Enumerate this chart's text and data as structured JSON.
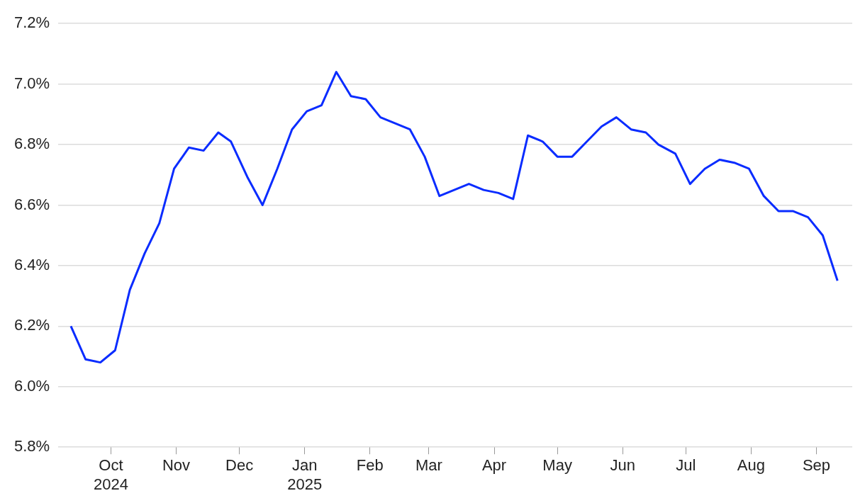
{
  "chart_data": {
    "type": "line",
    "color": "#0a2cff",
    "grid": "y",
    "legend": false,
    "marker": "none",
    "line_style": "solid",
    "x": [
      "2024-09-12",
      "2024-09-19",
      "2024-09-26",
      "2024-10-03",
      "2024-10-10",
      "2024-10-17",
      "2024-10-24",
      "2024-10-31",
      "2024-11-07",
      "2024-11-14",
      "2024-11-21",
      "2024-11-27",
      "2024-12-05",
      "2024-12-12",
      "2024-12-19",
      "2024-12-26",
      "2025-01-02",
      "2025-01-09",
      "2025-01-16",
      "2025-01-23",
      "2025-01-30",
      "2025-02-06",
      "2025-02-13",
      "2025-02-20",
      "2025-02-27",
      "2025-03-06",
      "2025-03-13",
      "2025-03-20",
      "2025-03-27",
      "2025-04-03",
      "2025-04-10",
      "2025-04-17",
      "2025-04-24",
      "2025-05-01",
      "2025-05-08",
      "2025-05-15",
      "2025-05-22",
      "2025-05-29",
      "2025-06-05",
      "2025-06-12",
      "2025-06-18",
      "2025-06-26",
      "2025-07-03",
      "2025-07-10",
      "2025-07-17",
      "2025-07-24",
      "2025-07-31",
      "2025-08-07",
      "2025-08-14",
      "2025-08-21",
      "2025-08-28",
      "2025-09-04",
      "2025-09-11"
    ],
    "values": [
      6.2,
      6.09,
      6.08,
      6.12,
      6.32,
      6.44,
      6.54,
      6.72,
      6.79,
      6.78,
      6.84,
      6.81,
      6.69,
      6.6,
      6.72,
      6.85,
      6.91,
      6.93,
      7.04,
      6.96,
      6.95,
      6.89,
      6.87,
      6.85,
      6.76,
      6.63,
      6.65,
      6.67,
      6.65,
      6.64,
      6.62,
      6.83,
      6.81,
      6.76,
      6.76,
      6.81,
      6.86,
      6.89,
      6.85,
      6.84,
      6.8,
      6.77,
      6.67,
      6.72,
      6.75,
      6.74,
      6.72,
      6.63,
      6.58,
      6.58,
      6.56,
      6.5,
      6.35
    ],
    "xlim": [
      "2024-09-06",
      "2025-09-18"
    ],
    "xticks": [
      {
        "value": "2024-10-01",
        "label": "Oct\n2024"
      },
      {
        "value": "2024-11-01",
        "label": "Nov"
      },
      {
        "value": "2024-12-01",
        "label": "Dec"
      },
      {
        "value": "2025-01-01",
        "label": "Jan\n2025"
      },
      {
        "value": "2025-02-01",
        "label": "Feb"
      },
      {
        "value": "2025-03-01",
        "label": "Mar"
      },
      {
        "value": "2025-04-01",
        "label": "Apr"
      },
      {
        "value": "2025-05-01",
        "label": "May"
      },
      {
        "value": "2025-06-01",
        "label": "Jun"
      },
      {
        "value": "2025-07-01",
        "label": "Jul"
      },
      {
        "value": "2025-08-01",
        "label": "Aug"
      },
      {
        "value": "2025-09-01",
        "label": "Sep"
      }
    ],
    "ylim": [
      5.8,
      7.2
    ],
    "yticks": [
      {
        "value": 5.8,
        "label": "5.8%"
      },
      {
        "value": 6.0,
        "label": "6.0%"
      },
      {
        "value": 6.2,
        "label": "6.2%"
      },
      {
        "value": 6.4,
        "label": "6.4%"
      },
      {
        "value": 6.6,
        "label": "6.6%"
      },
      {
        "value": 6.8,
        "label": "6.8%"
      },
      {
        "value": 7.0,
        "label": "7.0%"
      },
      {
        "value": 7.2,
        "label": "7.2%"
      }
    ]
  }
}
